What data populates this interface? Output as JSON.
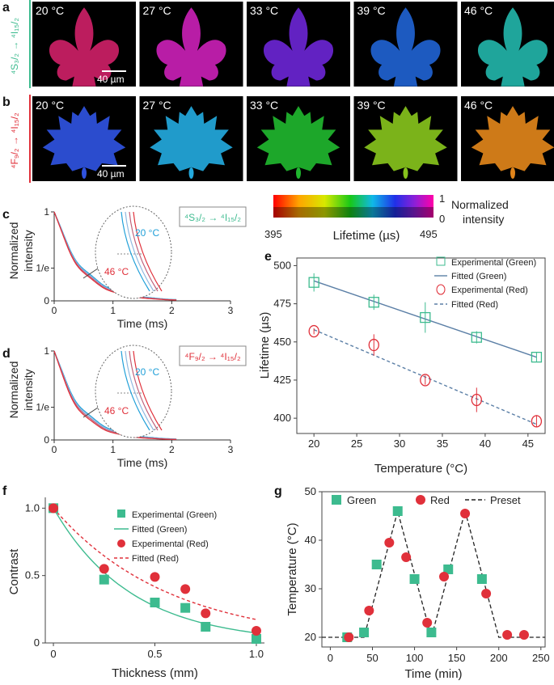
{
  "panel_letters": {
    "a": "a",
    "b": "b",
    "c": "c",
    "d": "d",
    "e": "e",
    "f": "f",
    "g": "g"
  },
  "colors": {
    "green": "#3dbb8f",
    "red": "#e0303a",
    "blue": "#1f9fd8",
    "fit_line": "#5b7fa6"
  },
  "row_a": {
    "side_label": "⁴S₃/₂ → ⁴I₁₅/₂",
    "scale_bar": "40 µm",
    "temps": [
      "20 °C",
      "27 °C",
      "33 °C",
      "39 °C",
      "46 °C"
    ],
    "tile_colors": [
      "#cc2066",
      "#c81fb4",
      "#6a25d2",
      "#1f62d0",
      "#22b3a8"
    ]
  },
  "row_b": {
    "side_label": "⁴F₉/₂ → ⁴I₁₅/₂",
    "scale_bar": "40 µm",
    "temps": [
      "20 °C",
      "27 °C",
      "33 °C",
      "39 °C",
      "46 °C"
    ],
    "tile_colors": [
      "#2f52e0",
      "#23a8dc",
      "#1fb52e",
      "#86c21c",
      "#e0841a"
    ]
  },
  "colorbar": {
    "min_label": "395",
    "max_label": "495",
    "axis_label": "Lifetime (µs)",
    "norm_top": "1",
    "norm_bottom": "0",
    "norm_title_1": "Normalized",
    "norm_title_2": "intensity"
  },
  "chart_data": [
    {
      "panel": "c",
      "type": "line",
      "xlabel": "Time (ms)",
      "ylabel_1": "Normalized",
      "ylabel_2": "intensity",
      "xticks": [
        "0",
        "1",
        "2",
        "3"
      ],
      "yticks": [
        "1",
        "1/e",
        "0"
      ],
      "xlim": [
        0,
        3
      ],
      "transition": "⁴S₃/₂ → ⁴I₁₅/₂",
      "inset_labels": [
        "20 °C",
        "46 °C"
      ],
      "series": [
        {
          "name": "20 °C",
          "tau_ms": 0.49,
          "color": "#1f9fd8"
        },
        {
          "name": "46 °C",
          "tau_ms": 0.44,
          "color": "#e0303a"
        }
      ]
    },
    {
      "panel": "d",
      "type": "line",
      "xlabel": "Time (ms)",
      "ylabel_1": "Normalized",
      "ylabel_2": "intensity",
      "xticks": [
        "0",
        "1",
        "2",
        "3"
      ],
      "yticks": [
        "1",
        "1/e",
        "0"
      ],
      "xlim": [
        0,
        3
      ],
      "transition": "⁴F₉/₂ → ⁴I₁₅/₂",
      "inset_labels": [
        "20 °C",
        "46 °C"
      ],
      "series": [
        {
          "name": "20 °C",
          "tau_ms": 0.46,
          "color": "#1f9fd8"
        },
        {
          "name": "46 °C",
          "tau_ms": 0.4,
          "color": "#e0303a"
        }
      ]
    },
    {
      "panel": "e",
      "type": "scatter",
      "xlabel": "Temperature (°C)",
      "ylabel": "Lifetime (µs)",
      "xlim": [
        18,
        47
      ],
      "ylim": [
        390,
        505
      ],
      "xticks": [
        20,
        25,
        30,
        35,
        40,
        45
      ],
      "yticks": [
        400,
        425,
        450,
        475,
        500
      ],
      "x": [
        20,
        27,
        33,
        39,
        46
      ],
      "series": [
        {
          "name": "Experimental (Green)",
          "values": [
            489,
            476,
            466,
            453,
            440
          ],
          "errors": [
            6,
            5,
            10,
            4,
            3
          ]
        },
        {
          "name": "Fitted (Green)",
          "line_from": [
            20,
            490
          ],
          "line_to": [
            46,
            440
          ]
        },
        {
          "name": "Experimental (Red)",
          "values": [
            457,
            448,
            425,
            412,
            398
          ],
          "errors": [
            2,
            7,
            3,
            8,
            4
          ]
        },
        {
          "name": "Fitted (Red)",
          "line_from": [
            20,
            458
          ],
          "line_to": [
            46,
            396
          ]
        }
      ]
    },
    {
      "panel": "f",
      "type": "scatter",
      "xlabel": "Thickness (mm)",
      "ylabel": "Contrast",
      "xlim": [
        -0.04,
        1.04
      ],
      "ylim": [
        0,
        1.08
      ],
      "xticks": [
        "0",
        "0.5",
        "1.0"
      ],
      "xtick_values": [
        0,
        0.5,
        1.0
      ],
      "yticks": [
        "0",
        "0.5",
        "1.0"
      ],
      "ytick_values": [
        0,
        0.5,
        1.0
      ],
      "x": [
        0,
        0.25,
        0.5,
        0.65,
        0.75,
        1.0
      ],
      "series": [
        {
          "name": "Experimental (Green)",
          "values": [
            1.0,
            0.47,
            0.3,
            0.26,
            0.12,
            0.03
          ]
        },
        {
          "name": "Fitted (Green)",
          "model": "exp",
          "k": 2.6
        },
        {
          "name": "Experimental (Red)",
          "values": [
            1.0,
            0.55,
            0.49,
            0.4,
            0.22,
            0.09
          ]
        },
        {
          "name": "Fitted (Red)",
          "model": "exp",
          "k": 1.75
        }
      ]
    },
    {
      "panel": "g",
      "type": "scatter",
      "xlabel": "Time (min)",
      "ylabel": "Temperature (°C)",
      "xlim": [
        -10,
        255
      ],
      "ylim": [
        18,
        50
      ],
      "xticks": [
        0,
        50,
        100,
        150,
        200,
        250
      ],
      "yticks": [
        20,
        30,
        40,
        50
      ],
      "legend": [
        "Green",
        "Red",
        "Preset"
      ],
      "series": [
        {
          "name": "Green",
          "x": [
            20,
            40,
            55,
            80,
            100,
            120,
            140,
            180
          ],
          "y": [
            20,
            21,
            35,
            46,
            32,
            21,
            34,
            32
          ]
        },
        {
          "name": "Red",
          "x": [
            22,
            46,
            70,
            90,
            115,
            135,
            160,
            185,
            210,
            230
          ],
          "y": [
            20,
            25.5,
            39.5,
            36.5,
            23,
            32.5,
            45.5,
            29,
            20.5,
            20.5
          ]
        },
        {
          "name": "Preset",
          "x": [
            -10,
            40,
            80,
            120,
            160,
            200,
            255
          ],
          "y": [
            20,
            20,
            46,
            20,
            46,
            20,
            20
          ]
        }
      ]
    }
  ]
}
